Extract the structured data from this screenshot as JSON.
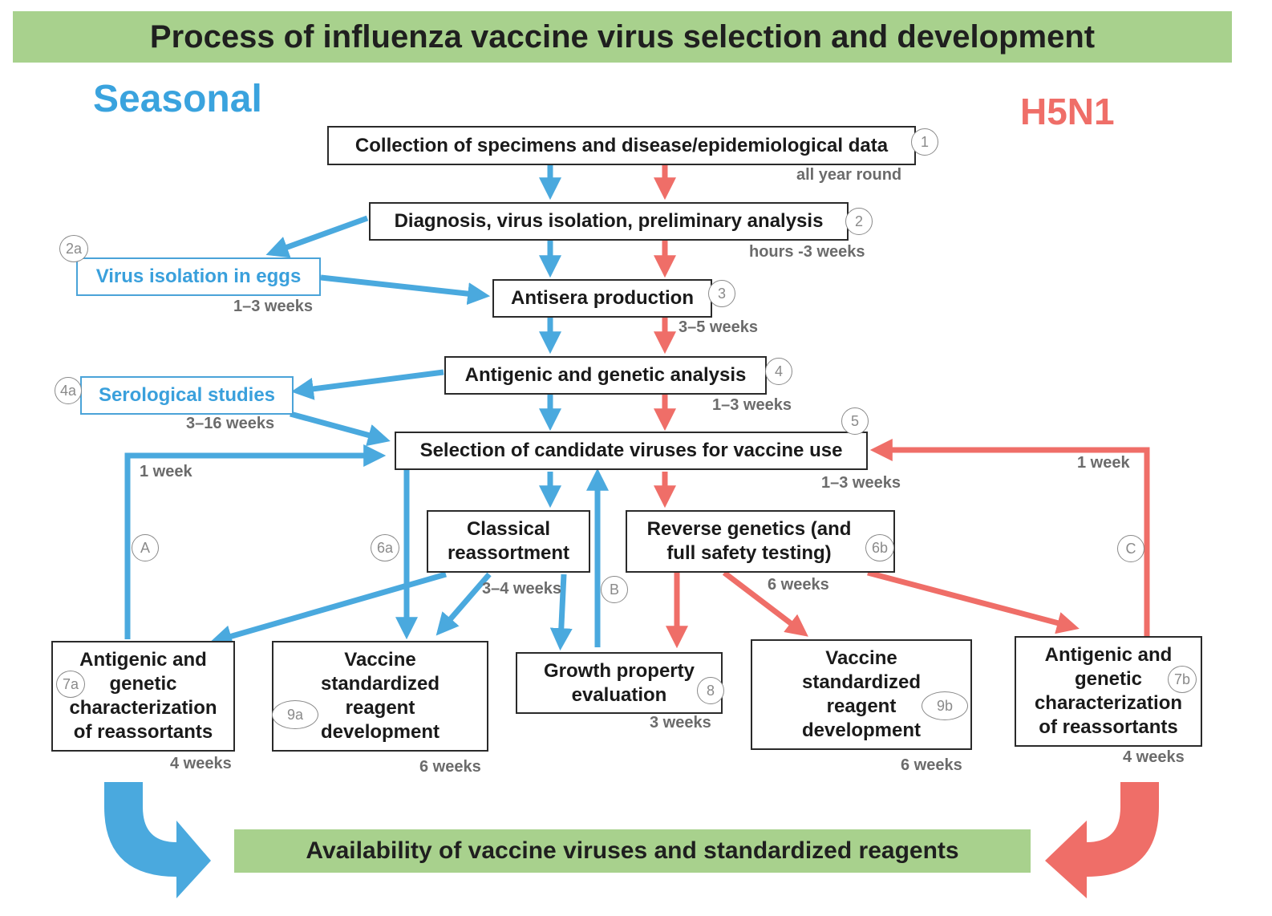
{
  "title": "Process of influenza vaccine virus selection and development",
  "labels": {
    "seasonal": "Seasonal",
    "h5n1": "H5N1"
  },
  "colors": {
    "seasonal": "#4aa9de",
    "h5n1": "#ef6e68",
    "banner": "#a8d18d"
  },
  "steps": {
    "s1": {
      "text": "Collection of specimens and disease/epidemiological data",
      "marker": "1",
      "duration": "all year round"
    },
    "s2": {
      "text": "Diagnosis, virus isolation, preliminary analysis",
      "marker": "2",
      "duration": "hours -3 weeks"
    },
    "s2a": {
      "text": "Virus isolation in eggs",
      "marker": "2a",
      "duration": "1–3 weeks"
    },
    "s3": {
      "text": "Antisera production",
      "marker": "3",
      "duration": "3–5 weeks"
    },
    "s4": {
      "text": "Antigenic and genetic analysis",
      "marker": "4",
      "duration": "1–3 weeks"
    },
    "s4a": {
      "text": "Serological studies",
      "marker": "4a",
      "duration": "3–16 weeks"
    },
    "s5": {
      "text": "Selection of candidate viruses for vaccine use",
      "marker": "5",
      "duration": "1–3 weeks"
    },
    "s6a": {
      "text": "Classical reassortment",
      "marker": "6a",
      "duration": "3–4 weeks"
    },
    "s6b": {
      "text": "Reverse genetics (and full safety testing)",
      "marker": "6b",
      "duration": "6 weeks"
    },
    "s7a": {
      "text": "Antigenic and genetic characterization of reassortants",
      "marker": "7a",
      "duration": "4 weeks"
    },
    "s7b": {
      "text": "Antigenic and genetic characterization of reassortants",
      "marker": "7b",
      "duration": "4 weeks"
    },
    "s8": {
      "text": "Growth property evaluation",
      "marker": "8",
      "duration": "3 weeks"
    },
    "s9a": {
      "text": "Vaccine standardized reagent development",
      "marker": "9a",
      "duration": "6 weeks"
    },
    "s9b": {
      "text": "Vaccine standardized reagent development",
      "marker": "9b",
      "duration": "6 weeks"
    }
  },
  "feedback": {
    "a": {
      "marker": "A",
      "duration": "1 week"
    },
    "b": {
      "marker": "B"
    },
    "c": {
      "marker": "C",
      "duration": "1 week"
    }
  },
  "outcome": "Availability of vaccine viruses and standardized reagents"
}
